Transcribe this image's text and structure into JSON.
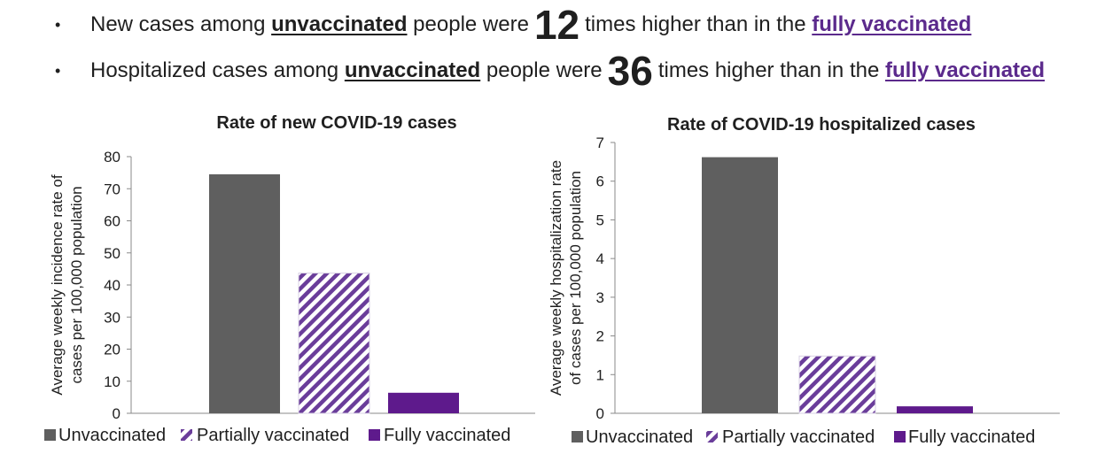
{
  "bullets": [
    {
      "pre": "New cases among",
      "em1": "unvaccinated",
      "mid": "people were",
      "num": "12",
      "post": "times higher than in the",
      "em2": "fully vaccinated"
    },
    {
      "pre": "Hospitalized cases among",
      "em1": "unvaccinated",
      "mid": "people were",
      "num": "36",
      "post": "times higher than in the",
      "em2": "fully vaccinated"
    }
  ],
  "colors": {
    "unvaccinated": "#5f5f5f",
    "partially": "#6a3d9a",
    "fully": "#5e1a8c"
  },
  "chart_data": [
    {
      "type": "bar",
      "title": "Rate of new COVID-19 cases",
      "ylabel_lines": [
        "Average weekly incidence rate of",
        "cases per 100,000 population"
      ],
      "xlabel": "",
      "categories": [
        "Unvaccinated",
        "Partially vaccinated",
        "Fully vaccinated"
      ],
      "values": [
        74.5,
        43.7,
        6.4
      ],
      "ylim": [
        0,
        80
      ],
      "yticks": [
        0,
        10,
        20,
        30,
        40,
        50,
        60,
        70,
        80
      ],
      "grid": false,
      "legend": "bottom"
    },
    {
      "type": "bar",
      "title": "Rate of COVID-19 hospitalized cases",
      "ylabel_lines": [
        "Average weekly hospitalization rate",
        "of cases per 100,000 population"
      ],
      "xlabel": "",
      "categories": [
        "Unvaccinated",
        "Partially vaccinated",
        "Fully vaccinated"
      ],
      "values": [
        6.62,
        1.48,
        0.18
      ],
      "ylim": [
        0,
        7
      ],
      "yticks": [
        0,
        1,
        2,
        3,
        4,
        5,
        6,
        7
      ],
      "grid": false,
      "legend": "bottom"
    }
  ]
}
